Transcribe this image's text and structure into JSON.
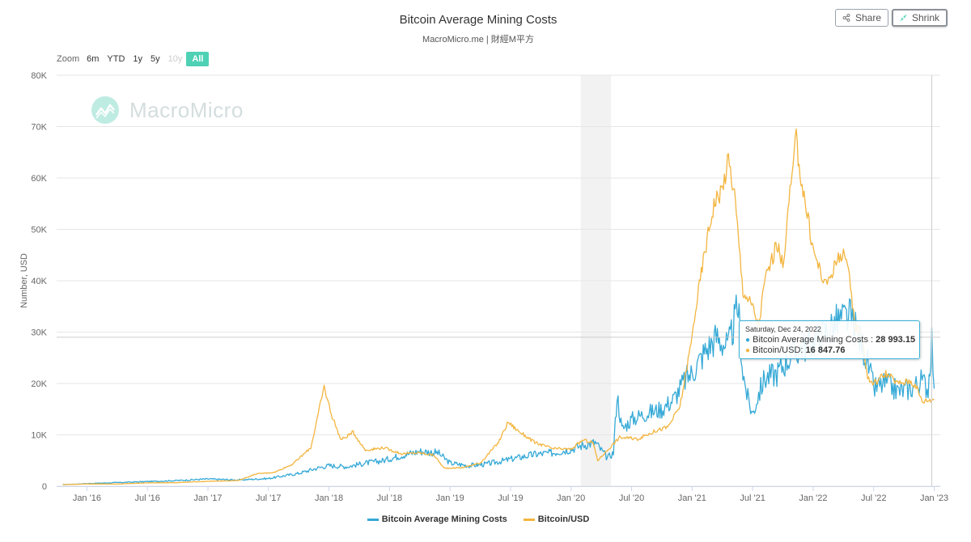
{
  "header": {
    "title": "Bitcoin Average Mining Costs",
    "subtitle": "MacroMicro.me | 財經M平方",
    "share_label": "Share",
    "shrink_label": "Shrink"
  },
  "zoom": {
    "label": "Zoom",
    "options": [
      "6m",
      "YTD",
      "1y",
      "5y",
      "10y",
      "All"
    ],
    "active": "All",
    "disabled": [
      "10y"
    ]
  },
  "watermark": "MacroMicro",
  "colors": {
    "mining": "#35a9d6",
    "btc": "#f3b53f",
    "recession": "#f2f2f2",
    "grid": "#e6e6e6"
  },
  "tooltip": {
    "date": "Saturday, Dec 24, 2022",
    "mining_label": "Bitcoin Average Mining Costs : ",
    "mining_value": "28 993.15",
    "btc_label": "Bitcoin/USD: ",
    "btc_value": "16 847.76"
  },
  "legend": [
    "Bitcoin Average Mining Costs",
    "Bitcoin/USD"
  ],
  "chart_data": {
    "type": "line",
    "title": "Bitcoin Average Mining Costs",
    "ylabel": "Number, USD",
    "ylim": [
      0,
      80000
    ],
    "yticks": [
      0,
      10000,
      20000,
      30000,
      40000,
      50000,
      60000,
      70000,
      80000
    ],
    "ytick_labels": [
      "0",
      "10K",
      "20K",
      "30K",
      "40K",
      "50K",
      "60K",
      "70K",
      "80K"
    ],
    "xlim": [
      2015.75,
      2023.05
    ],
    "xticks": [
      2016.0,
      2016.5,
      2017.0,
      2017.5,
      2018.0,
      2018.5,
      2019.0,
      2019.5,
      2020.0,
      2020.5,
      2021.0,
      2021.5,
      2022.0,
      2022.5,
      2023.0
    ],
    "xtick_labels": [
      "Jan '16",
      "Jul '16",
      "Jan '17",
      "Jul '17",
      "Jan '18",
      "Jul '18",
      "Jan '19",
      "Jul '19",
      "Jan '20",
      "Jul '20",
      "Jan '21",
      "Jul '21",
      "Jan '22",
      "Jul '22",
      "Jan '23"
    ],
    "shaded_band": [
      2020.08,
      2020.33
    ],
    "crosshair": {
      "x": 2022.98,
      "y": 28993.15
    },
    "series": [
      {
        "name": "Bitcoin Average Mining Costs",
        "x": [
          2015.8,
          2016.0,
          2016.25,
          2016.5,
          2016.75,
          2017.0,
          2017.25,
          2017.5,
          2017.75,
          2017.9,
          2018.0,
          2018.15,
          2018.3,
          2018.45,
          2018.6,
          2018.75,
          2018.9,
          2019.0,
          2019.15,
          2019.3,
          2019.45,
          2019.55,
          2019.7,
          2019.85,
          2020.0,
          2020.1,
          2020.2,
          2020.3,
          2020.35,
          2020.38,
          2020.42,
          2020.5,
          2020.6,
          2020.75,
          2020.85,
          2020.95,
          2021.0,
          2021.05,
          2021.1,
          2021.2,
          2021.3,
          2021.38,
          2021.42,
          2021.46,
          2021.5,
          2021.55,
          2021.6,
          2021.7,
          2021.8,
          2021.9,
          2022.0,
          2022.1,
          2022.2,
          2022.3,
          2022.4,
          2022.45,
          2022.5,
          2022.6,
          2022.7,
          2022.8,
          2022.9,
          2022.95,
          2022.98,
          2023.0
        ],
        "y": [
          300,
          500,
          700,
          900,
          1100,
          1400,
          1200,
          1500,
          2500,
          3500,
          4000,
          3800,
          4500,
          5000,
          6000,
          6800,
          6500,
          4500,
          4000,
          4300,
          5000,
          5500,
          6200,
          6500,
          7200,
          8000,
          8500,
          5500,
          6500,
          18000,
          11000,
          13000,
          14000,
          15000,
          17000,
          21000,
          22000,
          24000,
          26000,
          29000,
          27000,
          35000,
          22000,
          17000,
          14000,
          18000,
          21000,
          22000,
          25000,
          27000,
          28000,
          30000,
          32000,
          33000,
          28000,
          24000,
          19000,
          20000,
          18500,
          19000,
          20500,
          19000,
          28993.15,
          19000
        ]
      },
      {
        "name": "Bitcoin/USD",
        "x": [
          2015.8,
          2016.0,
          2016.25,
          2016.5,
          2016.75,
          2017.0,
          2017.25,
          2017.4,
          2017.55,
          2017.7,
          2017.85,
          2017.96,
          2018.02,
          2018.1,
          2018.2,
          2018.3,
          2018.45,
          2018.6,
          2018.75,
          2018.87,
          2018.95,
          2019.1,
          2019.25,
          2019.4,
          2019.48,
          2019.55,
          2019.7,
          2019.85,
          2020.0,
          2020.1,
          2020.18,
          2020.22,
          2020.3,
          2020.4,
          2020.55,
          2020.7,
          2020.8,
          2020.9,
          2021.0,
          2021.02,
          2021.1,
          2021.18,
          2021.25,
          2021.3,
          2021.35,
          2021.42,
          2021.5,
          2021.55,
          2021.6,
          2021.7,
          2021.75,
          2021.8,
          2021.86,
          2021.9,
          2022.0,
          2022.1,
          2022.2,
          2022.25,
          2022.3,
          2022.35,
          2022.4,
          2022.45,
          2022.5,
          2022.6,
          2022.7,
          2022.8,
          2022.85,
          2022.9,
          2022.98,
          2023.0
        ],
        "y": [
          300,
          430,
          420,
          650,
          700,
          950,
          1100,
          2400,
          2700,
          4300,
          7500,
          19300,
          14000,
          9000,
          10500,
          7000,
          7500,
          6300,
          6500,
          6000,
          3500,
          3600,
          4500,
          8500,
          12500,
          11000,
          8500,
          7300,
          7200,
          9000,
          8500,
          5000,
          7000,
          9500,
          9200,
          10800,
          11500,
          15500,
          29000,
          33000,
          45000,
          55000,
          58000,
          63500,
          57000,
          38000,
          35000,
          31000,
          40000,
          47000,
          43000,
          55000,
          67500,
          60000,
          46000,
          39000,
          44000,
          46000,
          40000,
          31000,
          30000,
          21000,
          20000,
          22000,
          20000,
          20500,
          19500,
          16500,
          16847.76,
          16800
        ]
      }
    ]
  }
}
